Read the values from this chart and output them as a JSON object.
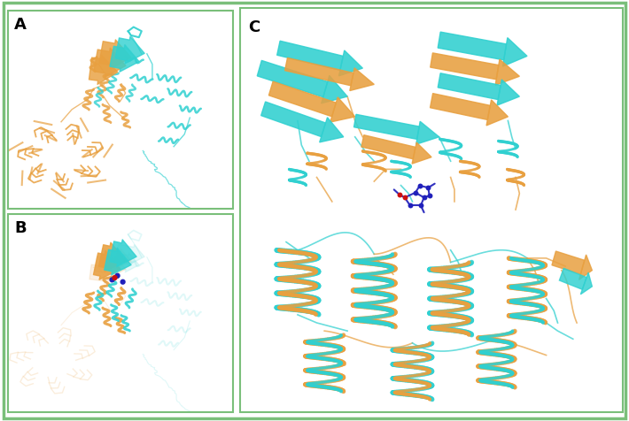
{
  "figure_width": 7.1,
  "figure_height": 4.76,
  "dpi": 100,
  "background_color": "#ffffff",
  "border_color": "#7abf7a",
  "border_linewidth": 2.5,
  "panel_A_label": "A",
  "panel_B_label": "B",
  "panel_C_label": "C",
  "label_fontsize": 13,
  "label_fontweight": "bold",
  "orange_color": "#E8A040",
  "cyan_color": "#30D0D0",
  "blue_color": "#2020BB",
  "red_color": "#CC1010",
  "divider_color": "#7abf7a",
  "divider_linewidth": 1.5,
  "panel_border_color": "#7abf7a"
}
